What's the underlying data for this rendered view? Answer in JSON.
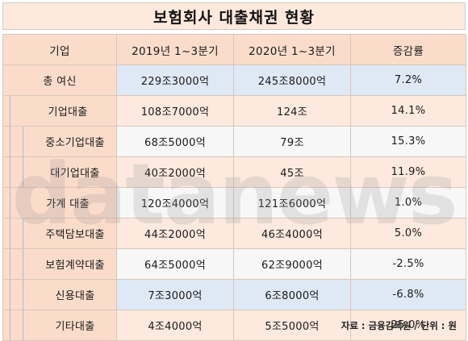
{
  "title": "보험회사 대출채권 현황",
  "table": {
    "headers": [
      "기업",
      "2019년 1~3분기",
      "2020년 1~3분기",
      "증감률"
    ],
    "rows": [
      {
        "label": "총 여신",
        "v2019": "229조3000억",
        "v2020": "245조8000억",
        "rate": "7.2%"
      },
      {
        "label": "기업대출",
        "v2019": "108조7000억",
        "v2020": "124조",
        "rate": "14.1%"
      },
      {
        "label": "중소기업대출",
        "v2019": "68조5000억",
        "v2020": "79조",
        "rate": "15.3%"
      },
      {
        "label": "대기업대출",
        "v2019": "40조2000억",
        "v2020": "45조",
        "rate": "11.9%"
      },
      {
        "label": "가계 대출",
        "v2019": "120조4000억",
        "v2020": "121조6000억",
        "rate": "1.0%"
      },
      {
        "label": "주택담보대출",
        "v2019": "44조2000억",
        "v2020": "46조4000억",
        "rate": "5.0%"
      },
      {
        "label": "보험계약대출",
        "v2019": "64조5000억",
        "v2020": "62조9000억",
        "rate": "-2.5%"
      },
      {
        "label": "신용대출",
        "v2019": "7조3000억",
        "v2020": "6조8000억",
        "rate": "-6.8%"
      },
      {
        "label": "기타대출",
        "v2019": "4조4000억",
        "v2020": "5조5000억",
        "rate": "25.0%"
      }
    ]
  },
  "watermark": "datanews",
  "source": "자료 : 금융감독원 / 단위 : 원"
}
